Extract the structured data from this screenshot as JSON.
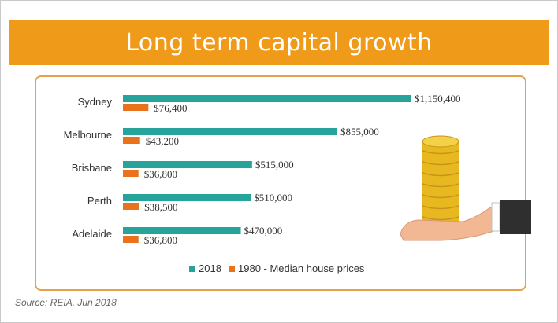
{
  "title": "Long term capital growth",
  "source": "Source: REIA, Jun 2018",
  "colors": {
    "banner": "#f09a1a",
    "series_2018": "#26a39a",
    "series_1980": "#e8731c",
    "border": "#e6a24a"
  },
  "chart_data": {
    "type": "bar",
    "orientation": "horizontal",
    "title": "Long term capital growth",
    "categories": [
      "Sydney",
      "Melbourne",
      "Brisbane",
      "Perth",
      "Adelaide"
    ],
    "series": [
      {
        "name": "2018",
        "values": [
          1150400,
          855000,
          515000,
          510000,
          470000
        ],
        "labels": [
          "$1,150,400",
          "$855,000",
          "$515,000",
          "$510,000",
          "$470,000"
        ]
      },
      {
        "name": "1980",
        "values": [
          76400,
          43200,
          36800,
          38500,
          36800
        ],
        "labels": [
          "$76,400",
          "$43,200",
          "$36,800",
          "$38,500",
          "$36,800"
        ]
      }
    ],
    "legend_suffix": " - Median house prices",
    "legend_position": "bottom",
    "xlim": [
      0,
      1150400
    ],
    "grid": false
  }
}
